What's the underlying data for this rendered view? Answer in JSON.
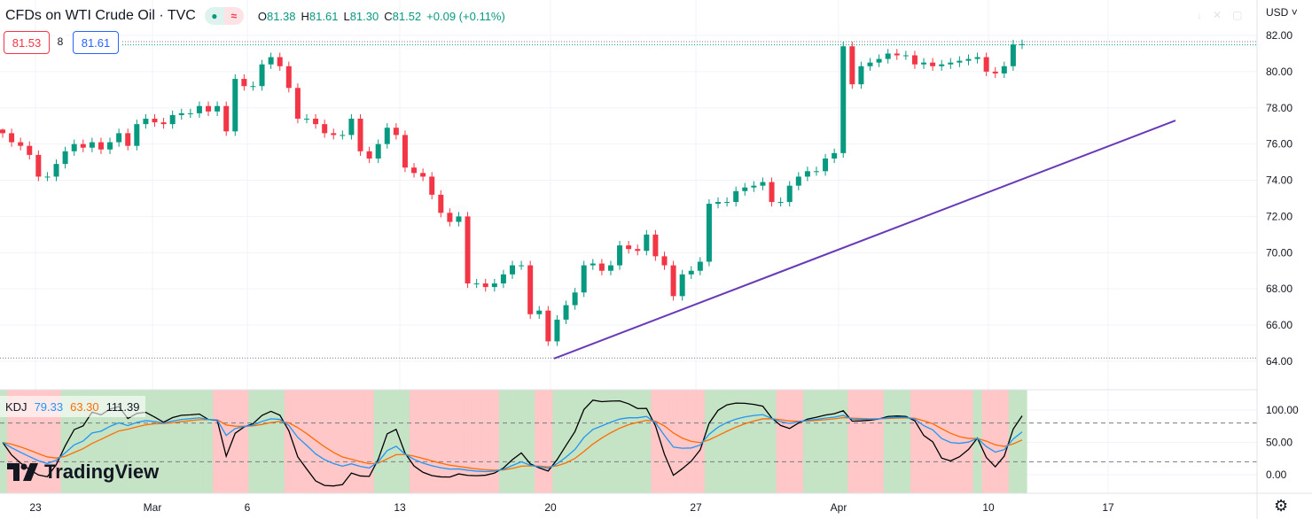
{
  "header": {
    "title": "CFDs on WTI Crude Oil · TVC",
    "market_status_icon": "dot-icon",
    "delayed_icon": "approx-icon",
    "open_label": "O",
    "open": "81.38",
    "high_label": "H",
    "high": "81.61",
    "low_label": "L",
    "low": "81.30",
    "close_label": "C",
    "close": "81.52",
    "change": "+0.09 (+0.11%)"
  },
  "trading": {
    "sell": "81.53",
    "spread": "8",
    "buy": "81.61"
  },
  "currency": "USD",
  "indicator": {
    "name": "KDJ",
    "k": "79.33",
    "d": "63.30",
    "j": "111.39"
  },
  "logo_text": "TradingView",
  "colors": {
    "up": "#089981",
    "down": "#f23645",
    "trendline": "#673ab7",
    "k": "#2196f3",
    "d": "#ff6d00",
    "j": "#000000",
    "bull_bg": "#c5e3c5",
    "bear_bg": "#ffc7c7"
  },
  "chart_data": {
    "type": "candlestick",
    "price_axis": {
      "ticks": [
        "82.00",
        "80.00",
        "78.00",
        "76.00",
        "74.00",
        "72.00",
        "70.00",
        "68.00",
        "66.00",
        "64.00"
      ],
      "range": [
        63.2,
        82.2
      ]
    },
    "time_axis": {
      "ticks": [
        "23",
        "Mar",
        "6",
        "13",
        "20",
        "27",
        "Apr",
        "10",
        "17"
      ]
    },
    "closes": [
      76.6,
      76.1,
      75.9,
      75.4,
      74.2,
      74.2,
      74.9,
      75.6,
      76.0,
      75.8,
      76.1,
      75.7,
      76.1,
      76.6,
      75.9,
      77.1,
      77.4,
      77.2,
      77.1,
      77.6,
      77.7,
      77.7,
      78.1,
      77.8,
      78.1,
      76.7,
      79.6,
      79.2,
      79.2,
      80.4,
      80.8,
      80.3,
      79.1,
      77.4,
      77.4,
      77.1,
      76.6,
      76.5,
      76.5,
      77.4,
      75.6,
      75.2,
      76.0,
      76.9,
      76.5,
      74.7,
      74.4,
      74.2,
      73.2,
      72.2,
      71.7,
      72.0,
      68.3,
      68.3,
      68.1,
      68.3,
      68.8,
      69.3,
      69.3,
      66.6,
      66.8,
      65.1,
      66.3,
      67.1,
      67.8,
      69.3,
      69.4,
      69.0,
      69.3,
      70.4,
      70.2,
      70.1,
      71.0,
      69.8,
      69.3,
      67.6,
      68.8,
      69.0,
      69.5,
      72.7,
      72.8,
      72.8,
      73.4,
      73.6,
      73.7,
      73.9,
      72.8,
      72.8,
      73.7,
      74.2,
      74.5,
      74.5,
      75.2,
      75.5,
      81.4,
      79.3,
      80.3,
      80.5,
      80.7,
      81.0,
      80.9,
      80.9,
      80.4,
      80.5,
      80.3,
      80.4,
      80.5,
      80.6,
      80.7,
      80.8,
      80.0,
      79.9,
      80.3,
      81.5,
      81.52
    ],
    "lines": {
      "high_line": 81.61,
      "bid_line": 81.53,
      "low_line": 64.18
    },
    "trendline": {
      "start_price": 64.15,
      "end_price": 77.3
    },
    "kdj_axis": {
      "ticks": [
        "100.00",
        "50.00",
        "0.00"
      ],
      "levels": [
        80,
        20
      ]
    }
  }
}
